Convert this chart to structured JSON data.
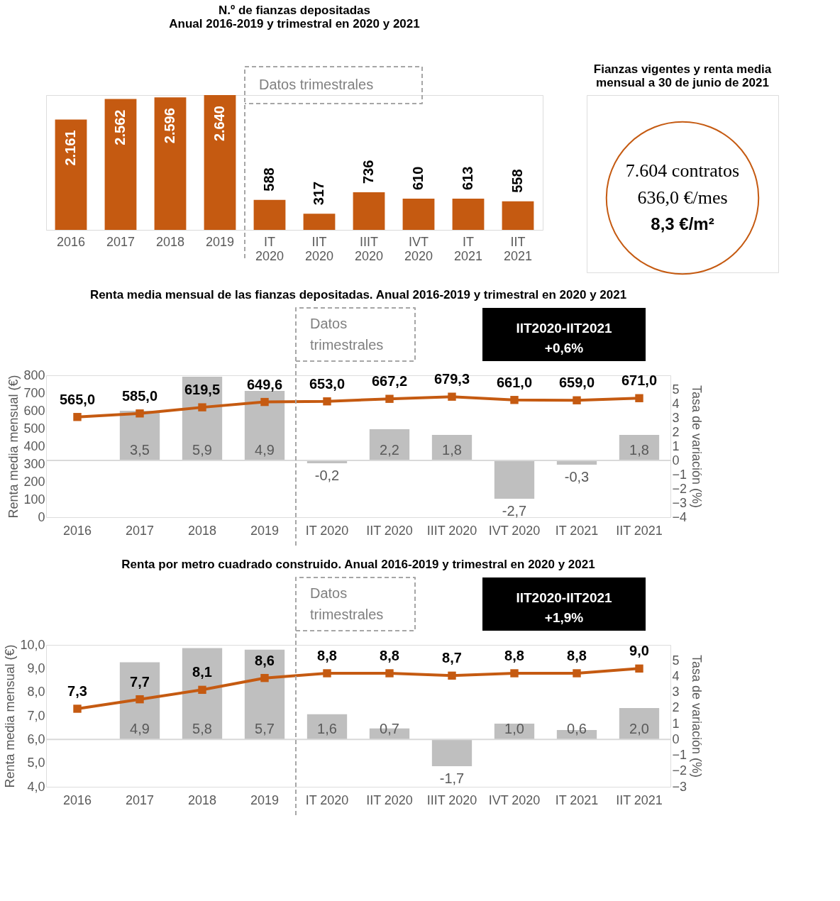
{
  "chart_data": [
    {
      "type": "bar",
      "title": "N.º de fianzas depositadas\nAnual 2016-2019 y trimestral en 2020 y 2021",
      "categories": [
        "2016",
        "2017",
        "2018",
        "2019",
        "IT 2020",
        "IIT 2020",
        "IIIT 2020",
        "IVT 2020",
        "IT 2021",
        "IIT 2021"
      ],
      "series": [
        {
          "color": "#c55a11",
          "values": [
            2161,
            2562,
            2596,
            2640,
            588,
            317,
            736,
            610,
            613,
            558
          ],
          "value_labels": [
            "2.161",
            "2.562",
            "2.596",
            "2.640",
            "588",
            "317",
            "736",
            "610",
            "613",
            "558"
          ]
        }
      ],
      "annotations": [
        "Datos trimestrales"
      ]
    },
    {
      "type": "other",
      "title": "Fianzas vigentes y renta media\nmensual a 30 de junio de 2021",
      "color": "#c55a11",
      "annotations": [
        "7.604 contratos",
        "636,0 €/mes",
        "8,3 €/m²"
      ]
    },
    {
      "type": "line",
      "title": "Renta media mensual de las fianzas depositadas. Anual 2016-2019 y trimestral en 2020 y 2021",
      "ylabel": "Renta media mensual (€)",
      "y2label": "Tasa de variación (%)",
      "categories": [
        "2016",
        "2017",
        "2018",
        "2019",
        "IT 2020",
        "IIT 2020",
        "IIIT 2020",
        "IVT 2020",
        "IT 2021",
        "IIT 2021"
      ],
      "series": [
        {
          "type": "bar",
          "axis": "y2",
          "color": "#bfbfbf",
          "values": [
            null,
            3.5,
            5.9,
            4.9,
            -0.2,
            2.2,
            1.8,
            -2.7,
            -0.3,
            1.8
          ],
          "value_labels": [
            null,
            "3,5",
            "5,9",
            "4,9",
            "-0,2",
            "2,2",
            "1,8",
            "-2,7",
            "-0,3",
            "1,8"
          ]
        },
        {
          "type": "line",
          "color": "#c55a11",
          "values": [
            565.0,
            585.0,
            619.5,
            649.6,
            653.0,
            667.2,
            679.3,
            661.0,
            659.0,
            671.0
          ],
          "value_labels": [
            "565,0",
            "585,0",
            "619,5",
            "649,6",
            "653,0",
            "667,2",
            "679,3",
            "661,0",
            "659,0",
            "671,0"
          ]
        }
      ],
      "ylim": [
        0,
        800
      ],
      "yticks": [
        0,
        100,
        200,
        300,
        400,
        500,
        600,
        700,
        800
      ],
      "y2lim": [
        -4,
        6
      ],
      "y2ticks": [
        -4,
        -3,
        -2,
        -1,
        0,
        1,
        2,
        3,
        4,
        5
      ],
      "ref_lines": [
        {
          "axis": "y2",
          "value": 0,
          "color": "#d9d9d9"
        }
      ],
      "annotations": [
        "Datos trimestrales",
        "IIT2020-IIT2021\n+0,6%"
      ],
      "marker": "square",
      "line_style": "solid",
      "grid": false
    },
    {
      "type": "line",
      "title": "Renta por metro cuadrado construido. Anual 2016-2019 y trimestral en 2020 y 2021",
      "ylabel": "Renta media mensual (€)",
      "y2label": "Tasa de variación (%)",
      "categories": [
        "2016",
        "2017",
        "2018",
        "2019",
        "IT 2020",
        "IIT 2020",
        "IIIT 2020",
        "IVT 2020",
        "IT 2021",
        "IIT 2021"
      ],
      "series": [
        {
          "type": "bar",
          "axis": "y2",
          "color": "#bfbfbf",
          "values": [
            null,
            4.9,
            5.8,
            5.7,
            1.6,
            0.7,
            -1.7,
            1.0,
            0.6,
            2.0
          ],
          "value_labels": [
            null,
            "4,9",
            "5,8",
            "5,7",
            "1,6",
            "0,7",
            "-1,7",
            "1,0",
            "0,6",
            "2,0"
          ]
        },
        {
          "type": "line",
          "color": "#c55a11",
          "values": [
            7.3,
            7.7,
            8.1,
            8.6,
            8.8,
            8.8,
            8.7,
            8.8,
            8.8,
            9.0
          ],
          "value_labels": [
            "7,3",
            "7,7",
            "8,1",
            "8,6",
            "8,8",
            "8,8",
            "8,7",
            "8,8",
            "8,8",
            "9,0"
          ]
        }
      ],
      "ylim": [
        4,
        10
      ],
      "yticks": [
        {
          "value": 4,
          "label": "4,0"
        },
        {
          "value": 5,
          "label": "5,0"
        },
        {
          "value": 6,
          "label": "6,0"
        },
        {
          "value": 7,
          "label": "7,0"
        },
        {
          "value": 8,
          "label": "8,0"
        },
        {
          "value": 9,
          "label": "9,0"
        },
        {
          "value": 10,
          "label": "10,0"
        }
      ],
      "y2lim": [
        -3,
        6
      ],
      "y2ticks": [
        -3,
        -2,
        -1,
        0,
        1,
        2,
        3,
        4,
        5
      ],
      "ref_lines": [
        {
          "axis": "y2",
          "value": 0,
          "color": "#d9d9d9"
        }
      ],
      "annotations": [
        "Datos trimestrales",
        "IIT2020-IIT2021\n+1,9%"
      ],
      "marker": "square",
      "line_style": "solid",
      "grid": false
    }
  ]
}
